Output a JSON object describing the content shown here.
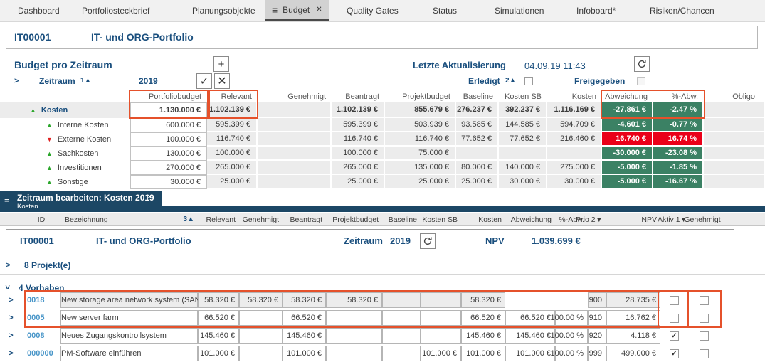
{
  "colors": {
    "good": "#3b8164",
    "bad": "#ea0019",
    "annotation": "#e5512b",
    "tab_navy": "#1c4765"
  },
  "nav": {
    "tabs": [
      "Dashboard",
      "Portfoliosteckbrief",
      "Planungsobjekte",
      "Budget",
      "Quality Gates",
      "Status",
      "Simulationen",
      "Infoboard*",
      "Risiken/Chancen"
    ],
    "active": "Budget"
  },
  "title_bar": {
    "id": "IT00001",
    "title": "IT- und ORG-Portfolio"
  },
  "panel1": {
    "heading": "Budget pro Zeitraum",
    "last_update_label": "Letzte Aktualisierung",
    "last_update_value": "04.09.19 11:43",
    "zeitraum_label": "Zeitraum",
    "zeitraum_sort": "1▲",
    "zeitraum_year": "2019",
    "erledigt_label": "Erledigt",
    "erledigt_sort": "2▲",
    "erledigt_checked": false,
    "freigegeben_label": "Freigegeben",
    "freigegeben_checked": false,
    "table": {
      "columns": [
        "Portfoliobudget",
        "Relevant",
        "Genehmigt",
        "Beantragt",
        "Projektbudget",
        "Baseline",
        "Kosten SB",
        "Kosten",
        "Abweichung",
        "%-Abw.",
        "Obligo"
      ],
      "rows": [
        {
          "label": "Kosten",
          "level": 0,
          "trend": "up",
          "status": "good",
          "bold": true,
          "values": [
            "1.130.000 €",
            "1.102.139 €",
            "",
            "1.102.139 €",
            "855.679 €",
            "276.237 €",
            "392.237 €",
            "1.116.169 €",
            "-27.861 €",
            "-2.47 %",
            ""
          ]
        },
        {
          "label": "Interne Kosten",
          "level": 1,
          "trend": "up",
          "status": "good",
          "bold": false,
          "values": [
            "600.000 €",
            "595.399 €",
            "",
            "595.399 €",
            "503.939 €",
            "93.585 €",
            "144.585 €",
            "594.709 €",
            "-4.601 €",
            "-0.77 %",
            ""
          ]
        },
        {
          "label": "Externe Kosten",
          "level": 1,
          "trend": "down",
          "status": "bad",
          "bold": false,
          "values": [
            "100.000 €",
            "116.740 €",
            "",
            "116.740 €",
            "116.740 €",
            "77.652 €",
            "77.652 €",
            "216.460 €",
            "16.740 €",
            "16.74 %",
            ""
          ]
        },
        {
          "label": "Sachkosten",
          "level": 1,
          "trend": "up",
          "status": "good",
          "bold": false,
          "values": [
            "130.000 €",
            "100.000 €",
            "",
            "100.000 €",
            "75.000 €",
            "",
            "",
            "",
            "-30.000 €",
            "-23.08 %",
            ""
          ]
        },
        {
          "label": "Investitionen",
          "level": 1,
          "trend": "up",
          "status": "good",
          "bold": false,
          "values": [
            "270.000 €",
            "265.000 €",
            "",
            "265.000 €",
            "135.000 €",
            "80.000 €",
            "140.000 €",
            "275.000 €",
            "-5.000 €",
            "-1.85 %",
            ""
          ]
        },
        {
          "label": "Sonstige",
          "level": 1,
          "trend": "up",
          "status": "good",
          "bold": false,
          "values": [
            "30.000 €",
            "25.000 €",
            "",
            "25.000 €",
            "25.000 €",
            "25.000 €",
            "30.000 €",
            "30.000 €",
            "-5.000 €",
            "-16.67 %",
            ""
          ]
        }
      ]
    }
  },
  "panel2": {
    "tab_title": "Zeitraum bearbeiten: Kosten 2019",
    "tab_subtitle": "Kosten",
    "columns": [
      "ID",
      "Bezeichnung",
      "3▲",
      "Relevant",
      "Genehmigt",
      "Beantragt",
      "Projektbudget",
      "Baseline",
      "Kosten SB",
      "Kosten",
      "Abweichung",
      "%-Abw.",
      "Prio 2▼",
      "NPV",
      "Aktiv 1▼",
      "Genehmigt"
    ],
    "summary": {
      "id": "IT00001",
      "title": "IT- und ORG-Portfolio",
      "zeitraum_label": "Zeitraum",
      "year": "2019",
      "npv_label": "NPV",
      "npv_value": "1.039.699 €"
    },
    "projekte_label": "8 Projekt(e)",
    "vorhaben_label": "4 Vorhaben",
    "rows": [
      {
        "id": "0018",
        "name": "New storage area network system (SAN)",
        "grayed": true,
        "values": [
          "58.320 €",
          "58.320 €",
          "58.320 €",
          "58.320 €",
          "",
          "",
          "58.320 €",
          "",
          ""
        ],
        "prio": "900",
        "npv": "28.735 €",
        "aktiv": false,
        "genehmigt": false
      },
      {
        "id": "0005",
        "name": "New server farm",
        "grayed": false,
        "values": [
          "66.520 €",
          "",
          "66.520 €",
          "",
          "",
          "",
          "66.520 €",
          "66.520 €",
          "100.00 %"
        ],
        "prio": "910",
        "npv": "16.762 €",
        "aktiv": false,
        "genehmigt": false
      },
      {
        "id": "0008",
        "name": "Neues Zugangskontrollsystem",
        "grayed": false,
        "values": [
          "145.460 €",
          "",
          "145.460 €",
          "",
          "",
          "",
          "145.460 €",
          "145.460 €",
          "100.00 %"
        ],
        "prio": "920",
        "npv": "4.118 €",
        "aktiv": true,
        "genehmigt": false
      },
      {
        "id": "000000",
        "name": "PM-Software einführen",
        "grayed": false,
        "values": [
          "101.000 €",
          "",
          "101.000 €",
          "",
          "",
          "101.000 €",
          "101.000 €",
          "101.000 €",
          "100.00 %"
        ],
        "prio": "999",
        "npv": "499.000 €",
        "aktiv": true,
        "genehmigt": false
      }
    ]
  }
}
